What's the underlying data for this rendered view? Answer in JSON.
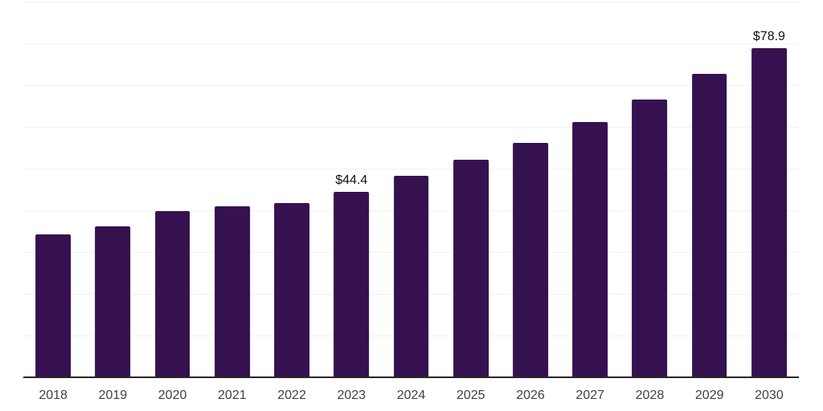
{
  "chart_data": {
    "type": "bar",
    "title": "",
    "xlabel": "",
    "ylabel": "",
    "categories": [
      "2018",
      "2019",
      "2020",
      "2021",
      "2022",
      "2023",
      "2024",
      "2025",
      "2026",
      "2027",
      "2028",
      "2029",
      "2030"
    ],
    "values": [
      34.2,
      36.2,
      39.8,
      40.9,
      41.7,
      44.4,
      48.3,
      52.1,
      56.1,
      61.1,
      66.5,
      72.6,
      78.9
    ],
    "data_labels": [
      "",
      "",
      "",
      "",
      "",
      "$44.4",
      "",
      "",
      "",
      "",
      "",
      "",
      "$78.9"
    ],
    "ylim": [
      0,
      90
    ],
    "gridline_step": 10,
    "grid": "horizontal-only",
    "y_axis_tick_labels_visible": false,
    "legend_position": "none"
  },
  "colors": {
    "background": "#ffffff",
    "bar": "#35124f",
    "gridline": "#f1f1f1",
    "axis_line": "#262626",
    "tick_label": "#404040",
    "data_label": "#111111"
  }
}
